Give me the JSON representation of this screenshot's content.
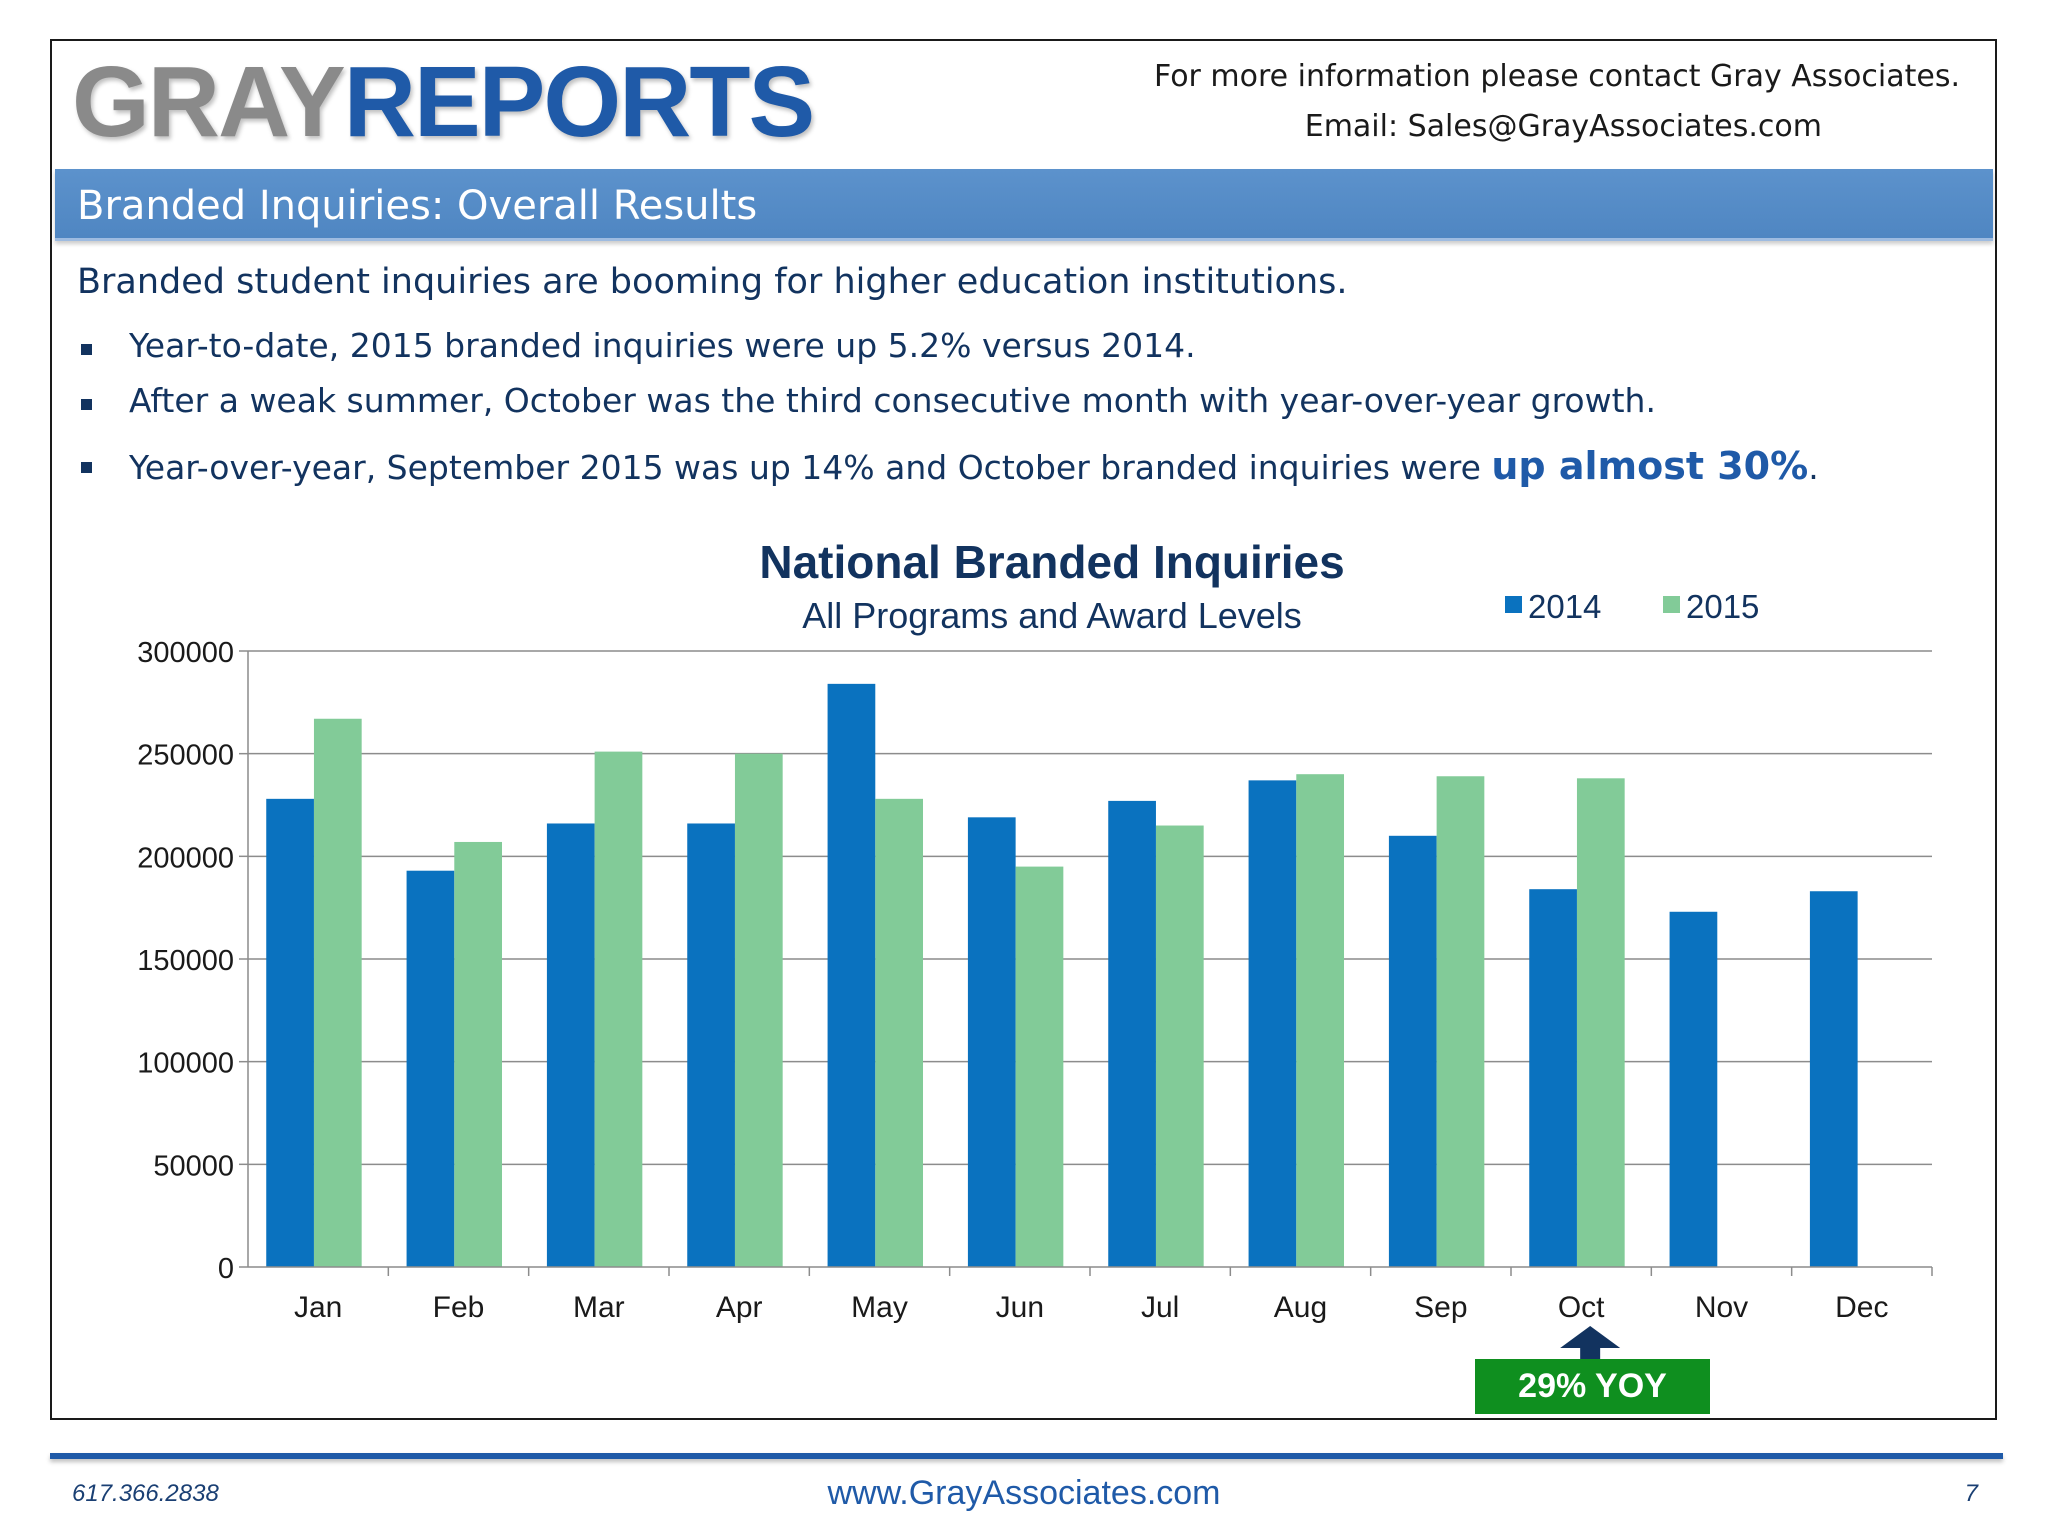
{
  "header": {
    "logo_gray": "GRAY",
    "logo_reports": "REPORTS",
    "contact_line1": "For more information please contact Gray Associates.",
    "contact_line2": "Email:  Sales@GrayAssociates.com"
  },
  "section": {
    "title": "Branded Inquiries:  Overall Results"
  },
  "body": {
    "intro": "Branded student inquiries are booming for higher education institutions.",
    "bullet1": "Year-to-date, 2015 branded inquiries were up 5.2% versus 2014.",
    "bullet2": "After a weak summer, October was the third consecutive month with year-over-year growth.",
    "bullet3_pre": "Year-over-year, September 2015 was up 14% and October branded inquiries were ",
    "bullet3_highlight": "up almost 30%",
    "bullet3_post": "."
  },
  "chart_data": {
    "type": "bar",
    "title": "National Branded Inquiries",
    "subtitle": "All Programs and Award Levels",
    "xlabel": "",
    "ylabel": "",
    "categories": [
      "Jan",
      "Feb",
      "Mar",
      "Apr",
      "May",
      "Jun",
      "Jul",
      "Aug",
      "Sep",
      "Oct",
      "Nov",
      "Dec"
    ],
    "series": [
      {
        "name": "2014",
        "color": "#0a72bf",
        "values": [
          228000,
          193000,
          216000,
          216000,
          284000,
          219000,
          227000,
          237000,
          210000,
          184000,
          173000,
          183000
        ]
      },
      {
        "name": "2015",
        "color": "#82cb98",
        "values": [
          267000,
          207000,
          251000,
          250000,
          228000,
          195000,
          215000,
          240000,
          239000,
          238000,
          null,
          null
        ]
      }
    ],
    "ylim": [
      0,
      300000
    ],
    "yticks": [
      0,
      50000,
      100000,
      150000,
      200000,
      250000,
      300000
    ],
    "ytick_labels": [
      "0",
      "50000",
      "100000",
      "150000",
      "200000",
      "250000",
      "300000"
    ],
    "grid": true,
    "legend_position": "top-right",
    "annotation": {
      "text": "29% YOY",
      "category": "Oct",
      "color": "#0f8f1f"
    }
  },
  "footer": {
    "phone": "617.366.2838",
    "website": "www.GrayAssociates.com",
    "page_number": "7"
  }
}
